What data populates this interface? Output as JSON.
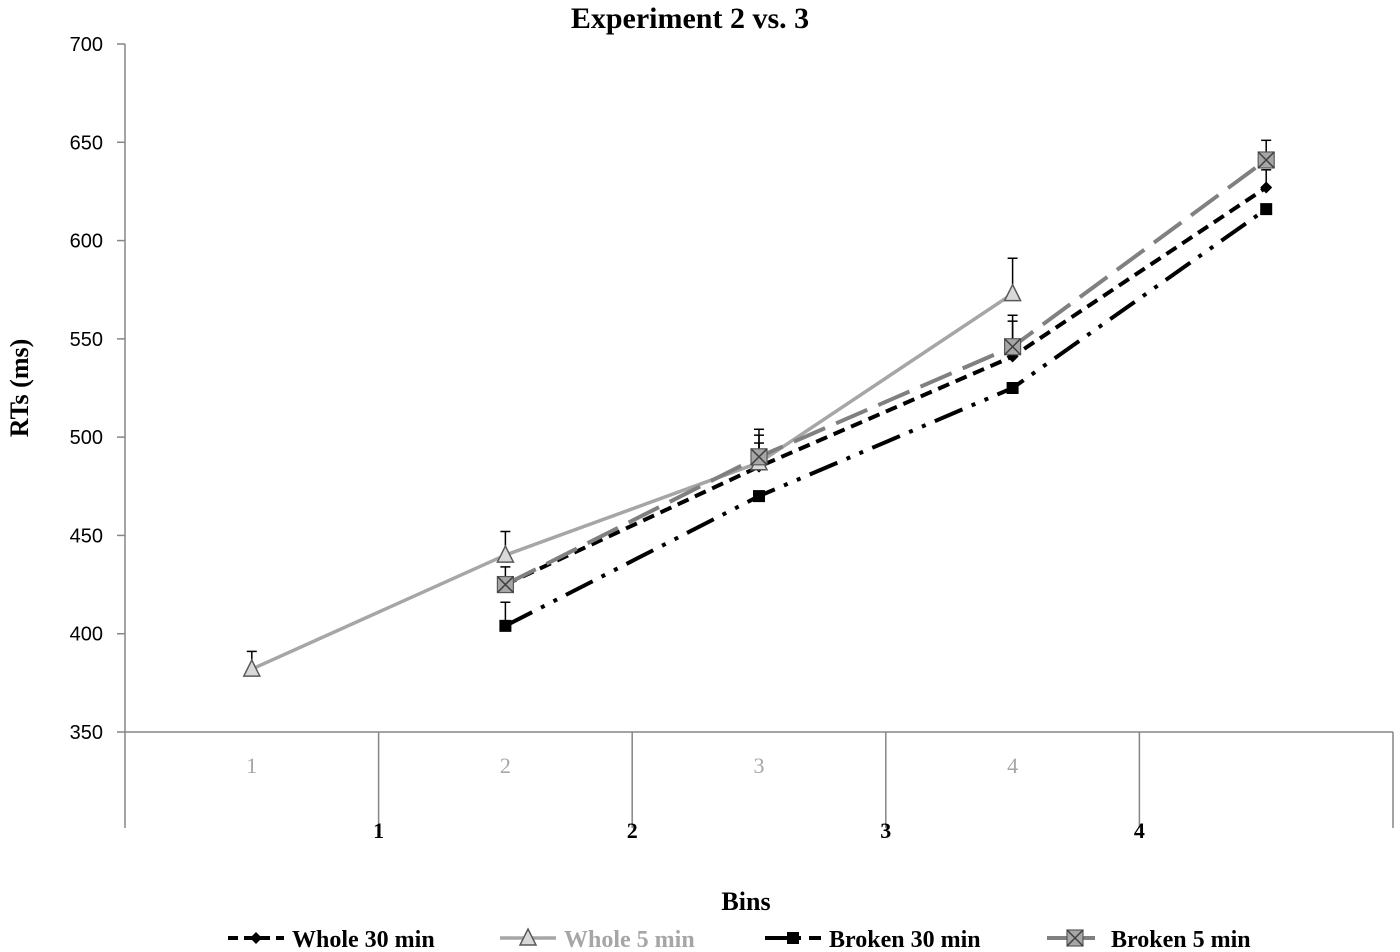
{
  "chart_data": {
    "type": "line",
    "title": "Experiment  2 vs. 3",
    "xlabel": "Bins",
    "ylabel": "RTs (ms)",
    "ylim": [
      350,
      700
    ],
    "yticks": [
      350,
      400,
      450,
      500,
      550,
      600,
      650,
      700
    ],
    "grid": false,
    "legend_position": "bottom",
    "categories_upper": [
      "1",
      "2",
      "3",
      "4"
    ],
    "categories_lower": [
      "1",
      "2",
      "3",
      "4"
    ],
    "series": [
      {
        "name": "Whole 30 min",
        "color": "#000000",
        "dash": "short-dash",
        "marker": "diamond",
        "points": [
          {
            "slot": 1,
            "y": 425,
            "err": 9
          },
          {
            "slot": 2,
            "y": 485,
            "err": 12
          },
          {
            "slot": 3,
            "y": 541,
            "err": 18
          },
          {
            "slot": 4,
            "y": 627,
            "err": 9
          }
        ]
      },
      {
        "name": "Whole 5 min",
        "color": "#a6a6a6",
        "dash": "solid",
        "marker": "triangle",
        "points": [
          {
            "slot": 0,
            "y": 382,
            "err": 9
          },
          {
            "slot": 1,
            "y": 440,
            "err": 12
          },
          {
            "slot": 2,
            "y": 487,
            "err": 14
          },
          {
            "slot": 3,
            "y": 573,
            "err": 18
          }
        ]
      },
      {
        "name": "Broken 30 min",
        "color": "#000000",
        "dash": "dash-dot-dot",
        "marker": "square",
        "points": [
          {
            "slot": 1,
            "y": 404,
            "err": 12
          },
          {
            "slot": 2,
            "y": 470,
            "err": 0
          },
          {
            "slot": 3,
            "y": 525,
            "err": 0
          },
          {
            "slot": 4,
            "y": 616,
            "err": 0
          }
        ]
      },
      {
        "name": "Broken 5 min",
        "color": "#808080",
        "dash": "long-dash",
        "marker": "x-square",
        "points": [
          {
            "slot": 1,
            "y": 425,
            "err": 0
          },
          {
            "slot": 2,
            "y": 490,
            "err": 14
          },
          {
            "slot": 3,
            "y": 546,
            "err": 16
          },
          {
            "slot": 4,
            "y": 641,
            "err": 10
          }
        ]
      }
    ]
  }
}
